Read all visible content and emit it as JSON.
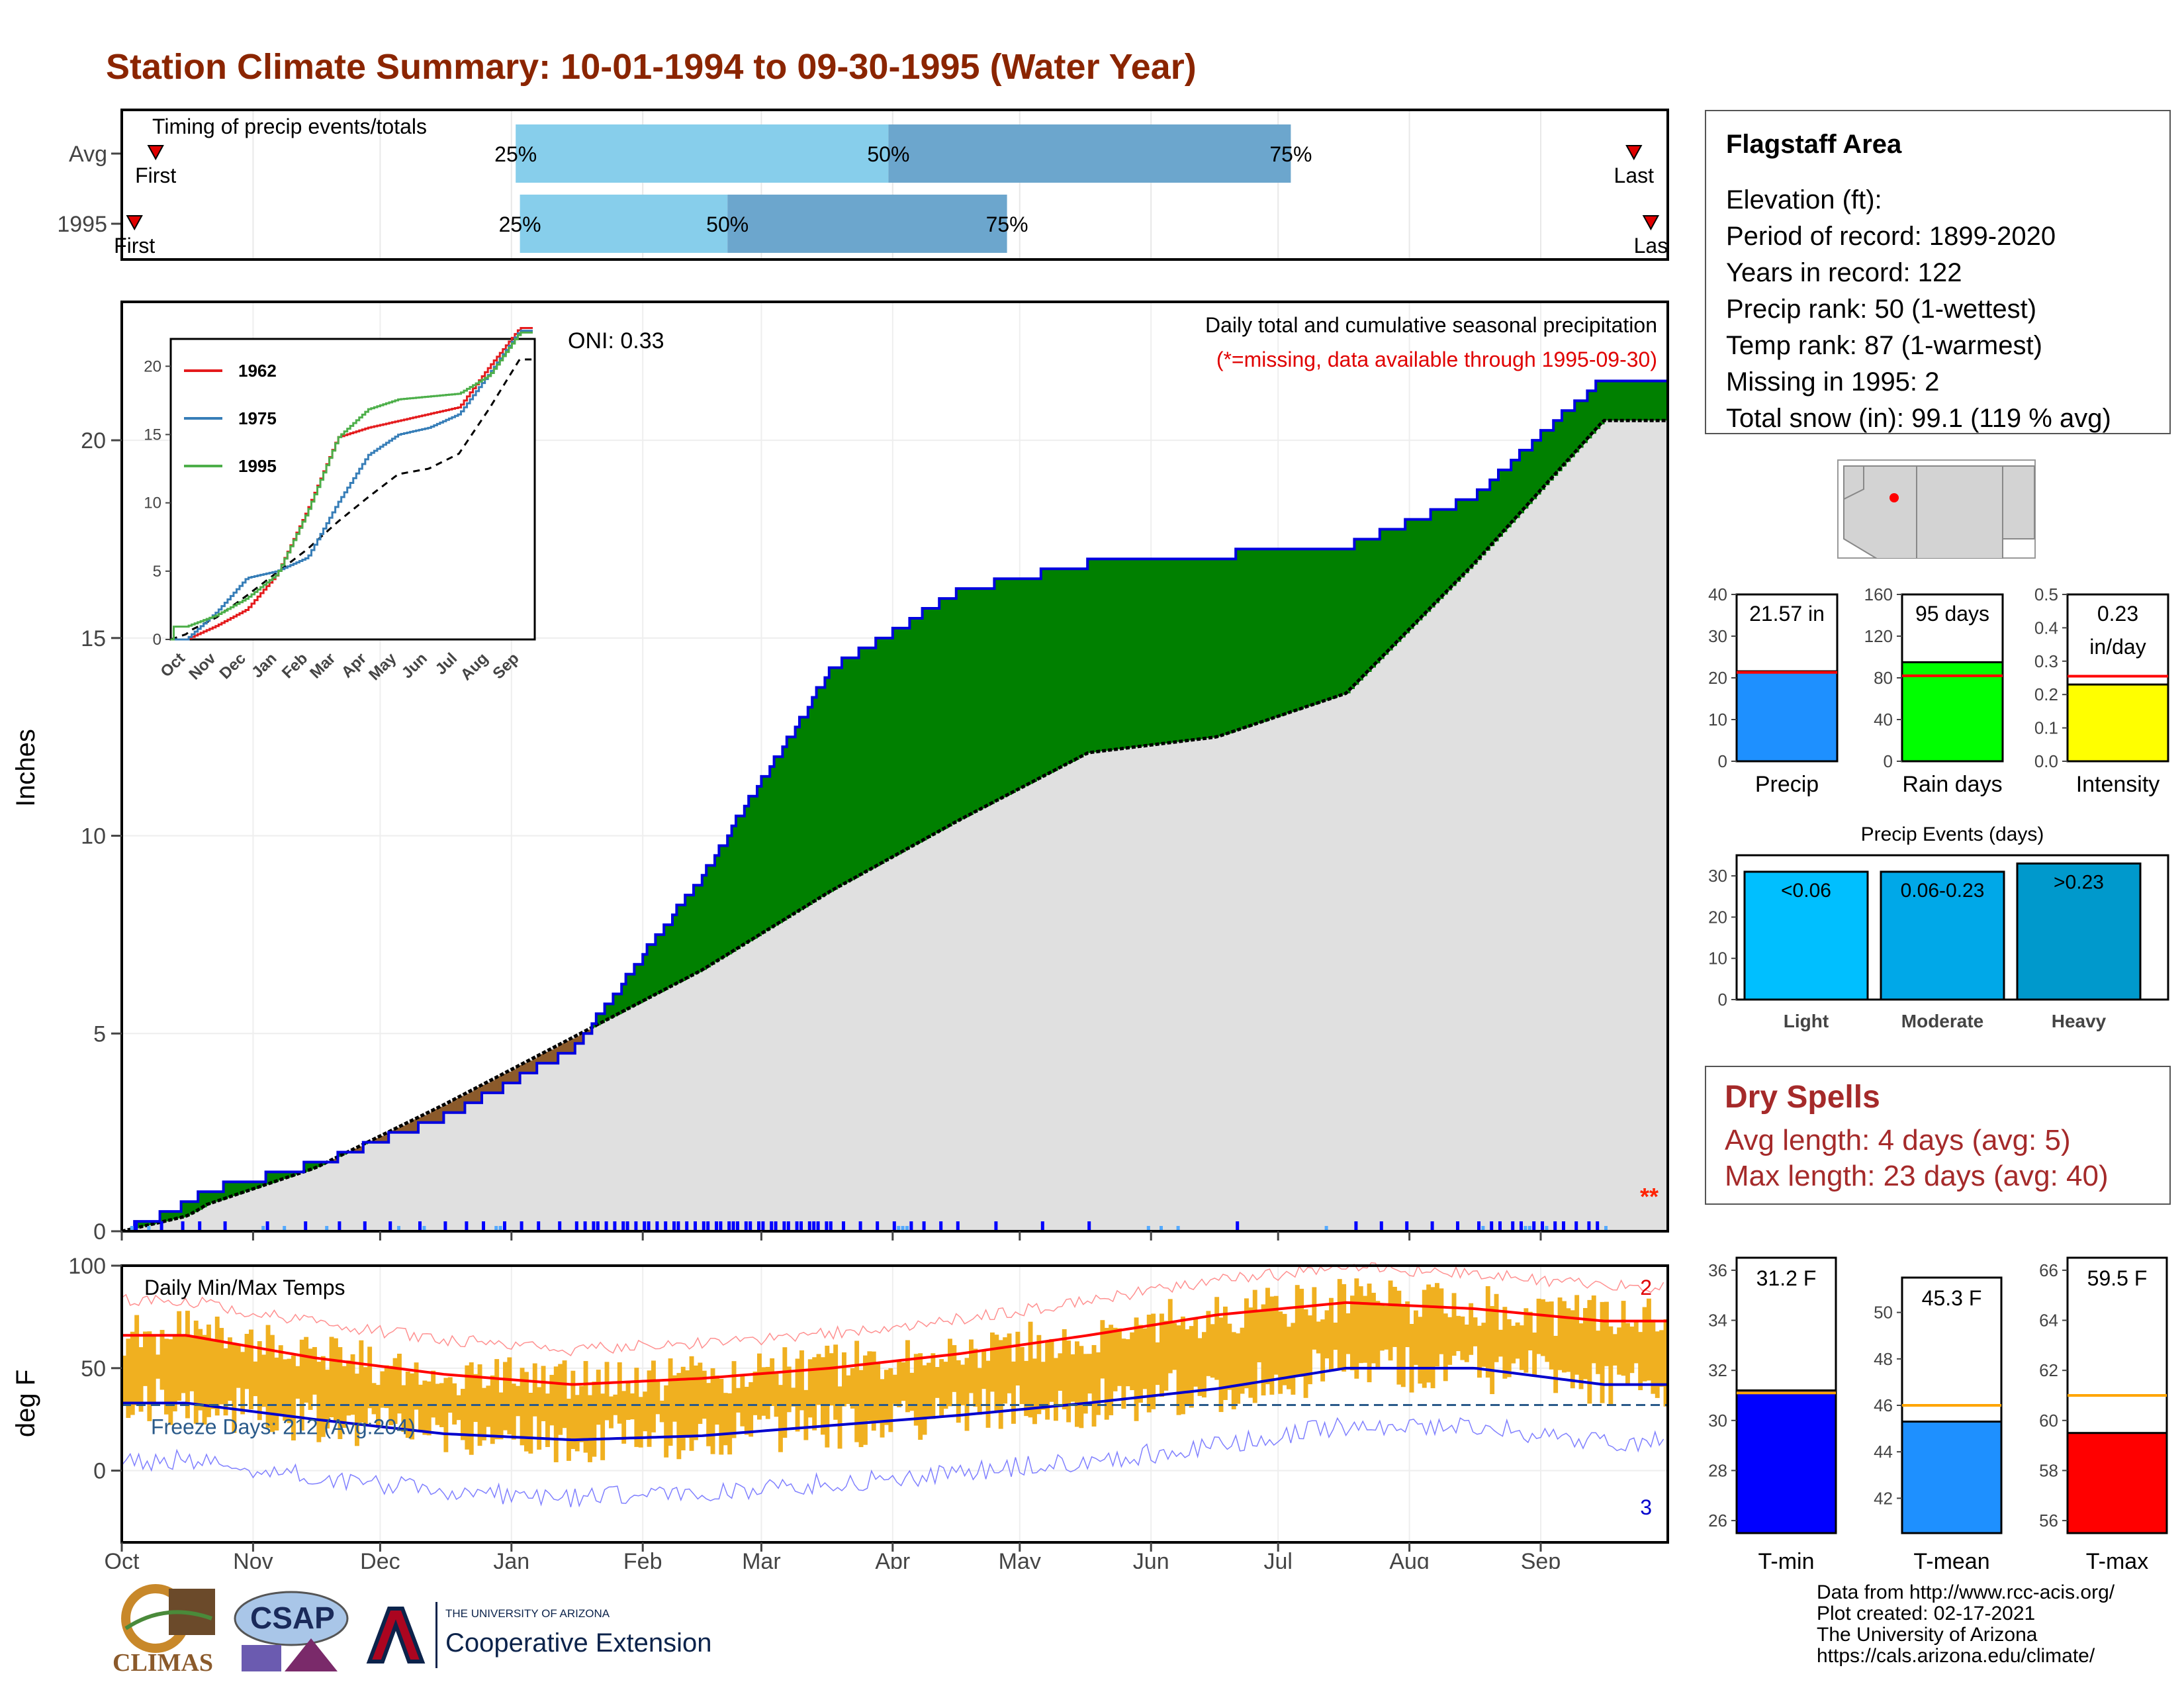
{
  "title": "Station Climate Summary: 10-01-1994 to 09-30-1995 (Water Year)",
  "timing": {
    "label": "Timing of precip events/totals",
    "rows": [
      {
        "name": "Avg",
        "first": "First",
        "last": "Last",
        "p25": "25%",
        "p50": "50%",
        "p75": "75%",
        "q25_day": 93,
        "q50_day": 181,
        "q75_day": 276,
        "first_day": 8,
        "last_day": 357
      },
      {
        "name": "1995",
        "first": "First",
        "last": "Las",
        "p25": "25%",
        "p50": "50%",
        "p75": "75%",
        "q25_day": 94,
        "q50_day": 143,
        "q75_day": 209,
        "first_day": 3,
        "last_day": 361
      }
    ],
    "colors": {
      "light": "#87CEEB",
      "dark": "#6CA6CD",
      "marker": "#e00000"
    }
  },
  "precip": {
    "ylabel": "Inches",
    "note1": "Daily total and cumulative seasonal precipitation",
    "note2": "(*=missing, data available through 1995-09-30)",
    "oni": "ONI: 0.33",
    "missing_marks": "**",
    "y_ticks": [
      "0",
      "5",
      "10",
      "15",
      "20"
    ],
    "ylim": [
      0,
      23.5
    ],
    "colors": {
      "above": "#008000",
      "below": "#8B5A2B",
      "avg_fill": "#e0e0e0",
      "line": "#0000e0",
      "daily": "#0000ff"
    }
  },
  "inset": {
    "y_ticks": [
      "0",
      "5",
      "10",
      "15",
      "20"
    ],
    "x_ticks": [
      "Oct",
      "Nov",
      "Dec",
      "Jan",
      "Feb",
      "Mar",
      "Apr",
      "May",
      "Jun",
      "Jul",
      "Aug",
      "Sep"
    ],
    "legend": [
      {
        "name": "1962",
        "color": "#e41a1c"
      },
      {
        "name": "1975",
        "color": "#377eb8"
      },
      {
        "name": "1995",
        "color": "#4daf4a"
      }
    ]
  },
  "temps": {
    "label": "Daily Min/Max Temps",
    "ylabel": "deg F",
    "y_ticks": [
      "100",
      "50",
      "0"
    ],
    "freeze": "Freeze Days: 212 (Avg:204)",
    "record_high_count": "2",
    "record_low_count": "3",
    "colors": {
      "bar": "#F0B020",
      "max": "#ff0000",
      "min": "#0000cc",
      "freeze": "#2a5a8a"
    }
  },
  "x_months": [
    "Oct",
    "Nov",
    "Dec",
    "Jan",
    "Feb",
    "Mar",
    "Apr",
    "May",
    "Jun",
    "Jul",
    "Aug",
    "Sep"
  ],
  "info": {
    "name": "Flagstaff Area",
    "lines": [
      "Elevation (ft):",
      "Period of record: 1899-2020",
      "Years in record: 122",
      "Precip rank: 50 (1-wettest)",
      "Temp rank: 87 (1-warmest)",
      "Missing in 1995: 2",
      "Total snow (in): 99.1 (119 % avg)"
    ]
  },
  "summary_bars": [
    {
      "label": "Precip",
      "value_text": "21.57 in",
      "value": 21.57,
      "avg": 21.3,
      "ymax": 40,
      "ticks": [
        "0",
        "10",
        "20",
        "30",
        "40"
      ],
      "color": "#1E90FF"
    },
    {
      "label": "Rain days",
      "value_text": "95 days",
      "value": 95,
      "avg": 82,
      "ymax": 160,
      "ticks": [
        "0",
        "40",
        "80",
        "120",
        "160"
      ],
      "color": "#00FF00"
    },
    {
      "label": "Intensity",
      "value_text": "0.23",
      "value_text2": "in/day",
      "value": 0.23,
      "avg": 0.255,
      "ymax": 0.5,
      "ticks": [
        "0.0",
        "0.1",
        "0.2",
        "0.3",
        "0.4",
        "0.5"
      ],
      "color": "#FFFF00"
    }
  ],
  "events": {
    "title": "Precip Events (days)",
    "ticks": [
      "0",
      "10",
      "20",
      "30"
    ],
    "ymax": 35,
    "bars": [
      {
        "cat": "Light",
        "label": "<0.06",
        "value": 31,
        "color": "#00BFFF"
      },
      {
        "cat": "Moderate",
        "label": "0.06-0.23",
        "value": 31,
        "color": "#00A8E8"
      },
      {
        "cat": "Heavy",
        "label": ">0.23",
        "value": 33,
        "color": "#0099CC"
      }
    ]
  },
  "dry_spells": {
    "title": "Dry Spells",
    "avg": "Avg length: 4 days (avg: 5)",
    "max": "Max length: 23 days (avg: 40)"
  },
  "temp_bars": [
    {
      "label": "T-min",
      "value_text": "31.2 F",
      "value": 31.2,
      "avg": 31.1,
      "ymin": 25.5,
      "ymax": 36.5,
      "ticks": [
        "26",
        "28",
        "30",
        "32",
        "34",
        "36"
      ],
      "tick_vals": [
        26,
        28,
        30,
        32,
        34,
        36
      ],
      "color": "#0000FF"
    },
    {
      "label": "T-mean",
      "value_text": "45.3 F",
      "value": 45.3,
      "avg": 46.0,
      "ymin": 40.5,
      "ymax": 51.5,
      "ticks": [
        "42",
        "44",
        "46",
        "48",
        "50"
      ],
      "tick_vals": [
        42,
        44,
        46,
        48,
        50
      ],
      "color": "#1E90FF"
    },
    {
      "label": "T-max",
      "value_text": "59.5 F",
      "value": 59.5,
      "avg": 61.0,
      "ymin": 55.5,
      "ymax": 66.5,
      "ticks": [
        "56",
        "58",
        "60",
        "62",
        "64",
        "66"
      ],
      "tick_vals": [
        56,
        58,
        60,
        62,
        64,
        66
      ],
      "color": "#FF0000"
    }
  ],
  "credits": [
    "Data from http://www.rcc-acis.org/",
    "Plot created: 02-17-2021",
    "The University of Arizona",
    "https://cals.arizona.edu/climate/"
  ],
  "logos": {
    "climas": "CLIMAS",
    "csap": "CSAP",
    "ua_small": "THE UNIVERSITY OF ARIZONA",
    "ua_big": "Cooperative Extension"
  },
  "chart_data": [
    {
      "type": "area",
      "title": "Daily total and cumulative seasonal precipitation",
      "ylabel": "Inches",
      "ylim": [
        0,
        23.5
      ],
      "x": [
        "Oct",
        "Nov",
        "Dec",
        "Jan",
        "Feb",
        "Mar",
        "Apr",
        "May",
        "Jun",
        "Jul",
        "Aug",
        "Sep"
      ],
      "series": [
        {
          "name": "1995",
          "values": [
            0.9,
            1.7,
            2.9,
            4.6,
            9.0,
            14.2,
            16.2,
            16.9,
            17.1,
            17.3,
            18.6,
            21.6
          ]
        },
        {
          "values": [
            0.5,
            1.6,
            3.2,
            4.9,
            6.6,
            8.6,
            10.4,
            12.1,
            12.5,
            13.6,
            16.9,
            20.5
          ]
        }
      ]
    },
    {
      "type": "line",
      "title": "Daily Min/Max Temps",
      "ylabel": "deg F",
      "ylim": [
        -35,
        100
      ],
      "x": [
        "Oct",
        "Nov",
        "Dec",
        "Jan",
        "Feb",
        "Mar",
        "Apr",
        "May",
        "Jun",
        "Jul",
        "Aug",
        "Sep"
      ],
      "series": [
        {
          "values": [
            66,
            55,
            47,
            42,
            45,
            50,
            57,
            66,
            76,
            82,
            79,
            73
          ]
        },
        {
          "values": [
            33,
            25,
            18,
            15,
            17,
            22,
            27,
            33,
            40,
            50,
            50,
            42
          ]
        }
      ]
    }
  ]
}
